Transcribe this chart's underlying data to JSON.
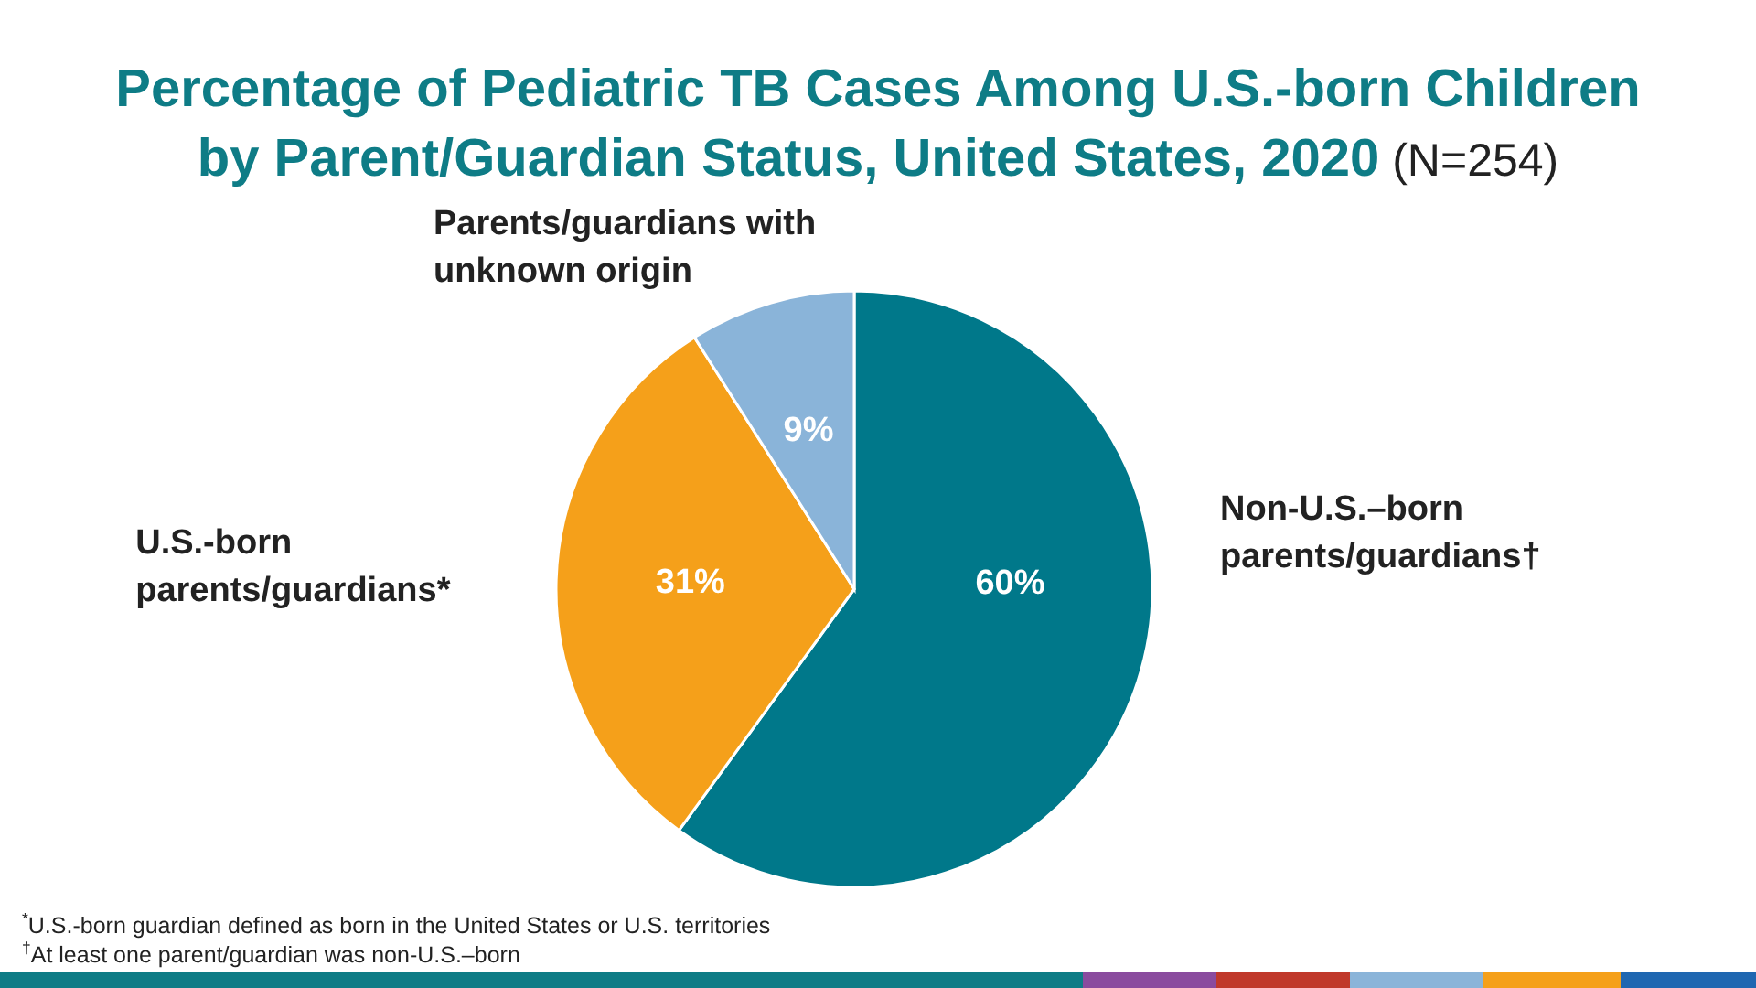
{
  "chart_data": {
    "type": "pie",
    "title": "Percentage of Pediatric TB Cases Among U.S.-born Children by Parent/Guardian Status, United States, 2020",
    "subtitle": "(N=254)",
    "categories": [
      "Non-U.S.–born parents/guardians†",
      "U.S.-born parents/guardians*",
      "Parents/guardians with unknown origin"
    ],
    "values": [
      60,
      31,
      9
    ],
    "colors": [
      "#00788a",
      "#f5a01a",
      "#8ab4d9"
    ],
    "value_labels": [
      "60%",
      "31%",
      "9%"
    ],
    "annotations": [
      "$^{*}$U.S.-born guardian defined as born in the United States or U.S. territories",
      "$^{†}$At least one parent/guardian was non-U.S.–born"
    ]
  }
}
